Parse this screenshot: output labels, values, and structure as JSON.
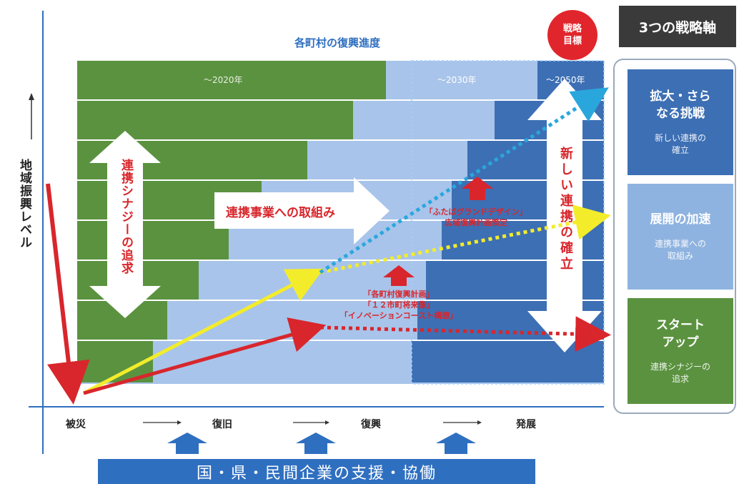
{
  "title": "各町村の復興進度",
  "y_axis_label": "地域振興レベル",
  "era_labels": [
    "～2020年",
    "～2030年",
    "～2050年"
  ],
  "strategic_target": "戦略\n目標",
  "arrows": {
    "synergy": "連携シナジーの追求",
    "projects": "連携事業への取組み",
    "new_partnership": "新しい連携の確立"
  },
  "notes": {
    "plan_upper": "「ふたばグランドデザイン」\n広域復興計画策定",
    "plan_lower": "「各町村復興計画」\n「１２市町将来像」\n「イノベーションコースト構想」"
  },
  "phases": [
    "被災",
    "復旧",
    "復興",
    "発展"
  ],
  "support_bar": "国・県・民間企業の支援・協働",
  "sidebar": {
    "title": "3つの戦略軸",
    "items": [
      {
        "title": "拡大・さら\nなる挑戦",
        "subtitle": "新しい連携の\n確立",
        "color": "#3d6fb4"
      },
      {
        "title": "展開の加速",
        "subtitle": "連携事業への\n取組み",
        "color": "#8fb3e0"
      },
      {
        "title": "スタート\nアップ",
        "subtitle": "連携シナジーの\n追求",
        "color": "#5b9240"
      }
    ]
  },
  "colors": {
    "green": "#5b9240",
    "light_blue": "#a8c4ea",
    "dark_blue": "#3d6fb4",
    "red": "#e0262c",
    "yellow": "#f3ec2b",
    "cyan": "#29a7dd"
  }
}
